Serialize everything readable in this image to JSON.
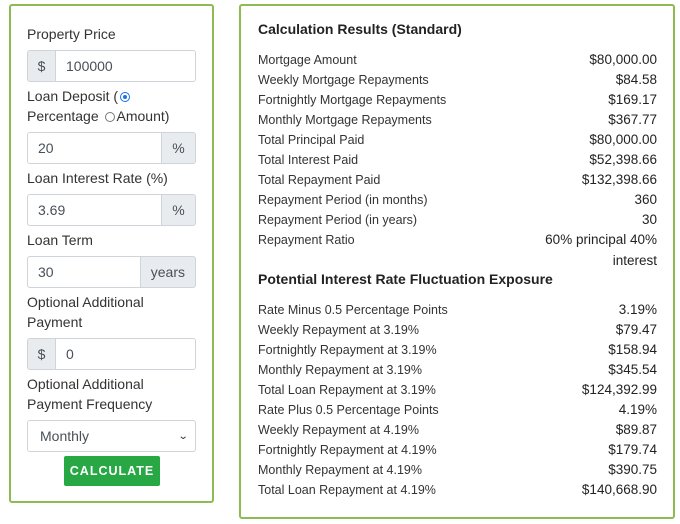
{
  "form": {
    "property_price_label": "Property Price",
    "property_price_prefix": "$",
    "property_price_value": "100000",
    "loan_deposit_label": "Loan Deposit",
    "deposit_option_percentage": "Percentage",
    "deposit_option_amount": "Amount)",
    "deposit_selected": "percentage",
    "deposit_value": "20",
    "deposit_suffix": "%",
    "interest_rate_label": "Loan Interest Rate (%)",
    "interest_rate_value": "3.69",
    "interest_rate_suffix": "%",
    "loan_term_label": "Loan Term",
    "loan_term_value": "30",
    "loan_term_suffix": "years",
    "additional_payment_label_1": "Optional Additional",
    "additional_payment_label_2": "Payment",
    "additional_payment_prefix": "$",
    "additional_payment_value": "0",
    "frequency_label_1": "Optional Additional",
    "frequency_label_2": "Payment Frequency",
    "frequency_value": "Monthly",
    "calculate_label": "CALCULATE"
  },
  "results": {
    "title": "Calculation Results (Standard)",
    "rows": [
      {
        "label": "Mortgage Amount",
        "value": "$80,000.00"
      },
      {
        "label": "Weekly Mortgage Repayments",
        "value": "$84.58"
      },
      {
        "label": "Fortnightly Mortgage Repayments",
        "value": "$169.17"
      },
      {
        "label": "Monthly Mortgage Repayments",
        "value": "$367.77"
      },
      {
        "label": "Total Principal Paid",
        "value": "$80,000.00"
      },
      {
        "label": "Total Interest Paid",
        "value": "$52,398.66"
      },
      {
        "label": "Total Repayment Paid",
        "value": "$132,398.66"
      },
      {
        "label": "Repayment Period (in months)",
        "value": "360"
      },
      {
        "label": "Repayment Period (in years)",
        "value": "30"
      },
      {
        "label": "Repayment Ratio",
        "value": "60% principal 40% interest"
      }
    ]
  },
  "fluctuation": {
    "title": "Potential Interest Rate Fluctuation Exposure",
    "rows": [
      {
        "label": "Rate Minus 0.5 Percentage Points",
        "value": "3.19%"
      },
      {
        "label": "Weekly Repayment at 3.19%",
        "value": "$79.47"
      },
      {
        "label": "Fortnightly Repayment at 3.19%",
        "value": "$158.94"
      },
      {
        "label": "Monthly Repayment at 3.19%",
        "value": "$345.54"
      },
      {
        "label": "Total Loan Repayment at 3.19%",
        "value": "$124,392.99"
      },
      {
        "label": "Rate Plus 0.5 Percentage Points",
        "value": "4.19%"
      },
      {
        "label": "Weekly Repayment at 4.19%",
        "value": "$89.87"
      },
      {
        "label": "Fortnightly Repayment at 4.19%",
        "value": "$179.74"
      },
      {
        "label": "Monthly Repayment at 4.19%",
        "value": "$390.75"
      },
      {
        "label": "Total Loan Repayment at 4.19%",
        "value": "$140,668.90"
      }
    ]
  }
}
